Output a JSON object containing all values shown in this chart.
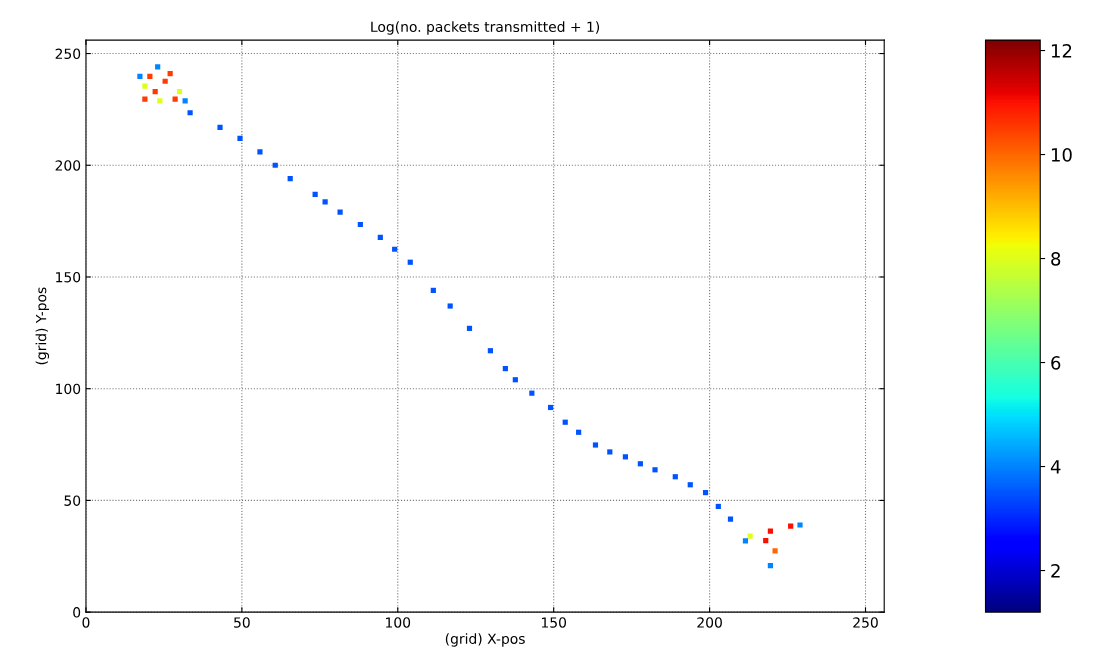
{
  "chart_data": {
    "type": "scatter",
    "title": "Log(no. packets transmitted + 1)",
    "xlabel": "(grid) X-pos",
    "ylabel": "(grid) Y-pos",
    "xlim": [
      0,
      256
    ],
    "ylim": [
      0,
      256
    ],
    "xticks": [
      0,
      50,
      100,
      150,
      200,
      250
    ],
    "yticks": [
      0,
      50,
      100,
      150,
      200,
      250
    ],
    "clim": [
      1.2,
      12.2
    ],
    "cticks": [
      2,
      4,
      6,
      8,
      10,
      12
    ],
    "grid": true,
    "marker": "square",
    "series": [
      {
        "x": [
          33.4,
          43,
          49.4,
          55.8,
          60.7,
          65.5,
          73.5,
          76.7,
          81.5,
          88,
          94.4,
          99,
          104,
          111.4,
          116.8,
          123,
          129.7,
          134.5,
          137.7,
          143,
          149,
          153.7,
          158,
          163.4,
          168,
          173,
          177.8,
          182.5,
          189,
          193.8,
          198.7,
          202.8,
          206.7,
          20.5,
          25.4,
          22.2,
          28.6,
          18.9,
          27,
          18.9,
          30,
          23.7,
          17.3,
          31.8,
          23,
          213,
          219.5,
          226,
          221,
          219.5,
          229,
          211.5,
          218
        ],
        "values": [
          223.5,
          217,
          212,
          206,
          200,
          194,
          187,
          183.6,
          179,
          173.5,
          167.7,
          162.4,
          156.6,
          144,
          137,
          127,
          117,
          109,
          104,
          98,
          91.6,
          85,
          80.5,
          74.8,
          71.7,
          69.5,
          66.4,
          63.7,
          60.6,
          57,
          53.5,
          47.3,
          41.6,
          239.8,
          237.6,
          233,
          229.6,
          229.6,
          241,
          235.4,
          233,
          228.8,
          239.8,
          228.8,
          244,
          34,
          36.3,
          38.5,
          27.4,
          20.8,
          39,
          31.9,
          32
        ],
        "cvalues": [
          3.5,
          3.5,
          3.5,
          3.5,
          3.5,
          3.5,
          3.5,
          3.5,
          3.5,
          3.5,
          3.5,
          3.5,
          3.5,
          3.5,
          3.5,
          3.5,
          3.5,
          3.5,
          3.5,
          3.5,
          3.5,
          3.5,
          3.5,
          3.5,
          3.5,
          3.5,
          3.5,
          3.5,
          3.5,
          3.5,
          3.5,
          3.5,
          3.5,
          10.5,
          10.5,
          10.5,
          10.5,
          10.5,
          10.5,
          8,
          8,
          8,
          4,
          4,
          4,
          8,
          11,
          11,
          10,
          4,
          4,
          4,
          11
        ]
      }
    ]
  }
}
